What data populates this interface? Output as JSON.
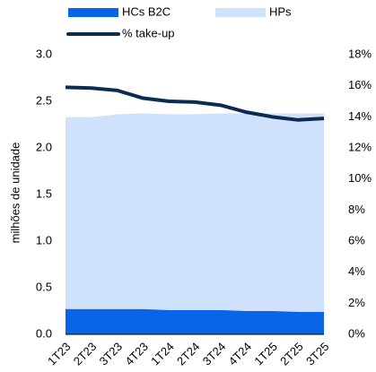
{
  "chart_data": {
    "type": "area",
    "categories": [
      "1T23",
      "2T23",
      "3T23",
      "4T23",
      "1T24",
      "2T24",
      "3T24",
      "4T24",
      "1T25",
      "2T25",
      "3T25"
    ],
    "series": [
      {
        "name": "HPs",
        "color": "#cfe1fb",
        "values": [
          2.33,
          2.33,
          2.36,
          2.37,
          2.36,
          2.36,
          2.37,
          2.37,
          2.37,
          2.37,
          2.37
        ]
      },
      {
        "name": "HCs B2C",
        "color": "#0a64e6",
        "values": [
          0.27,
          0.27,
          0.27,
          0.27,
          0.26,
          0.26,
          0.26,
          0.25,
          0.25,
          0.24,
          0.24
        ]
      },
      {
        "name": "% take-up",
        "color": "#0d2b50",
        "type": "line",
        "axis": "y2",
        "values": [
          15.9,
          15.85,
          15.7,
          15.2,
          15.0,
          14.95,
          14.75,
          14.3,
          14.0,
          13.8,
          13.9
        ]
      }
    ],
    "ylabel": "milhões de unidade",
    "ylim": [
      0,
      3
    ],
    "yticks": [
      {
        "value": 0,
        "label": "0.0"
      },
      0.5,
      {
        "value": 1,
        "label": "1.0"
      },
      1.5,
      {
        "value": 2,
        "label": "2.0"
      },
      2.5,
      {
        "value": 3,
        "label": "3.0"
      }
    ],
    "y2lim": [
      0,
      18
    ],
    "y2ticks": [
      {
        "value": 0,
        "label": "0%"
      },
      {
        "value": 2,
        "label": "2%"
      },
      {
        "value": 4,
        "label": "4%"
      },
      {
        "value": 6,
        "label": "6%"
      },
      {
        "value": 8,
        "label": "8%"
      },
      {
        "value": 10,
        "label": "10%"
      },
      {
        "value": 12,
        "label": "12%"
      },
      {
        "value": 14,
        "label": "14%"
      },
      {
        "value": 16,
        "label": "16%"
      },
      {
        "value": 18,
        "label": "18%"
      }
    ],
    "grid": false
  }
}
